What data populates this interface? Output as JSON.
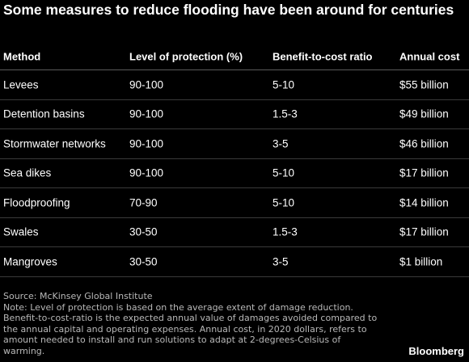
{
  "title": "Some measures to reduce flooding have been around for centuries",
  "table": {
    "headers": [
      "Method",
      "Level of protection (%)",
      "Benefit-to-cost ratio",
      "Annual cost"
    ],
    "rows": [
      [
        "Levees",
        "90-100",
        "5-10",
        "$55 billion"
      ],
      [
        "Detention basins",
        "90-100",
        "1.5-3",
        "$49 billion"
      ],
      [
        "Stormwater networks",
        "90-100",
        "3-5",
        "$46 billion"
      ],
      [
        "Sea dikes",
        "90-100",
        "5-10",
        "$17 billion"
      ],
      [
        "Floodproofing",
        "70-90",
        "5-10",
        "$14 billion"
      ],
      [
        "Swales",
        "30-50",
        "1.5-3",
        "$17 billion"
      ],
      [
        "Mangroves",
        "30-50",
        "3-5",
        "$1 billion"
      ]
    ]
  },
  "source": "Source: McKinsey Global Institute",
  "note": "Note: Level of protection is based on the average extent of damage reduction. Benefit-to-cost-ratio is the expected annual value of damages avoided compared to the annual capital and operating expenses. Annual cost, in 2020 dollars, refers to amount needed to install and run solutions to adapt at 2-degrees-Celsius of warming.",
  "brand": "Bloomberg"
}
